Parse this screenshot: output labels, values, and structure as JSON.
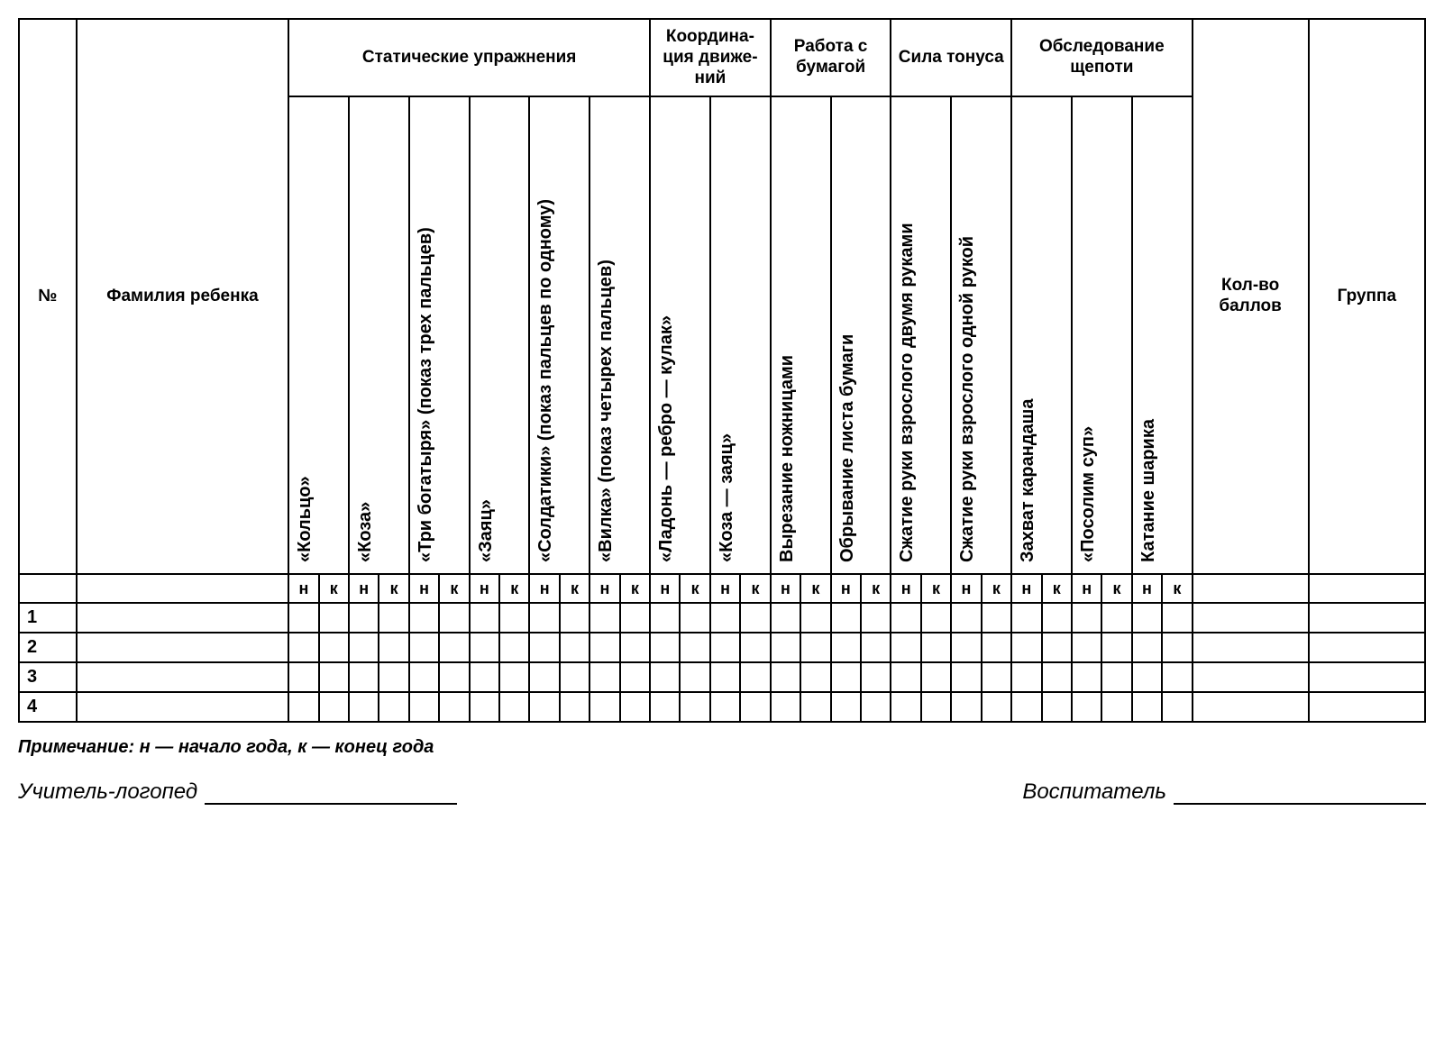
{
  "headers": {
    "number": "№",
    "childName": "Фамилия ребенка",
    "totalScore": "Кол-во баллов",
    "group": "Группа"
  },
  "groups": [
    {
      "title": "Статические упражнения",
      "columns": [
        "«Кольцо»",
        "«Коза»",
        "«Три богатыря» (показ трех пальцев)",
        "«Заяц»",
        "«Солдатики» (показ пальцев по одному)",
        "«Вилка» (показ четырех пальцев)"
      ]
    },
    {
      "title": "Координа-ция движе-ний",
      "columns": [
        "«Ладонь — ребро — кулак»",
        "«Коза — заяц»"
      ]
    },
    {
      "title": "Работа с бумагой",
      "columns": [
        "Вырезание ножницами",
        "Обрывание листа бумаги"
      ]
    },
    {
      "title": "Сила тонуса",
      "columns": [
        "Сжатие руки взрослого двумя руками",
        "Сжатие руки взрослого одной рукой"
      ]
    },
    {
      "title": "Обследование щепоти",
      "columns": [
        "Захват карандаша",
        "«Посолим суп»",
        "Катание шарика"
      ]
    }
  ],
  "subHeaders": {
    "n": "н",
    "k": "к"
  },
  "rows": [
    "1",
    "2",
    "3",
    "4"
  ],
  "note": "Примечание: н — начало года, к — конец года",
  "signatures": {
    "teacher": "Учитель-логопед",
    "educator": "Воспитатель"
  }
}
